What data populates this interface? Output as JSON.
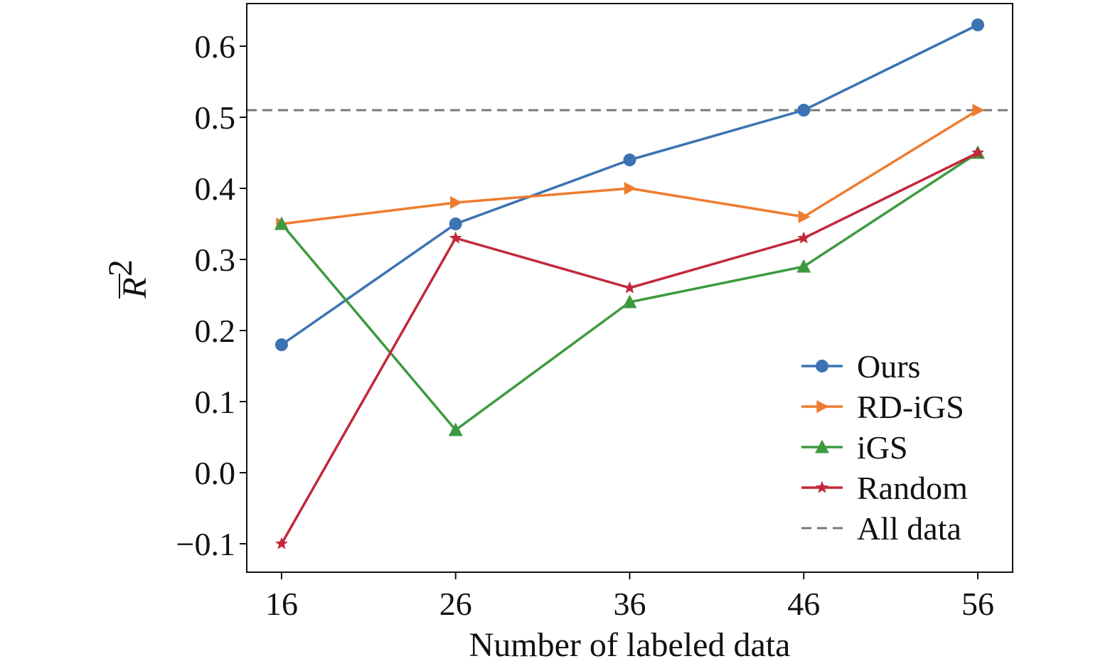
{
  "chart_data": {
    "type": "line",
    "xlabel": "Number of labeled data",
    "ylabel_base": "R",
    "ylabel_sup": "2",
    "x": [
      16,
      26,
      36,
      46,
      56
    ],
    "x_ticks": [
      "16",
      "26",
      "36",
      "46",
      "56"
    ],
    "xlim": [
      14,
      58
    ],
    "ylim": [
      -0.14,
      0.66
    ],
    "y_ticks": [
      -0.1,
      0.0,
      0.1,
      0.2,
      0.3,
      0.4,
      0.5,
      0.6
    ],
    "y_tick_labels": [
      "−0.1",
      "0.0",
      "0.1",
      "0.2",
      "0.3",
      "0.4",
      "0.5",
      "0.6"
    ],
    "grid": false,
    "legend_position": "bottom-right",
    "series": [
      {
        "name": "Ours",
        "values": [
          0.18,
          0.35,
          0.44,
          0.51,
          0.63
        ],
        "color": "#3b73b3",
        "marker": "circle"
      },
      {
        "name": "RD-iGS",
        "values": [
          0.35,
          0.38,
          0.4,
          0.36,
          0.51
        ],
        "color": "#ee7c30",
        "marker": "triangle-right"
      },
      {
        "name": "iGS",
        "values": [
          0.35,
          0.06,
          0.24,
          0.29,
          0.45
        ],
        "color": "#3d9a3f",
        "marker": "triangle-up"
      },
      {
        "name": "Random",
        "values": [
          -0.1,
          0.33,
          0.26,
          0.33,
          0.45
        ],
        "color": "#c3283a",
        "marker": "star"
      }
    ],
    "reference_line": {
      "name": "All data",
      "value": 0.51,
      "color": "#7a7a7a",
      "style": "dashed"
    }
  }
}
